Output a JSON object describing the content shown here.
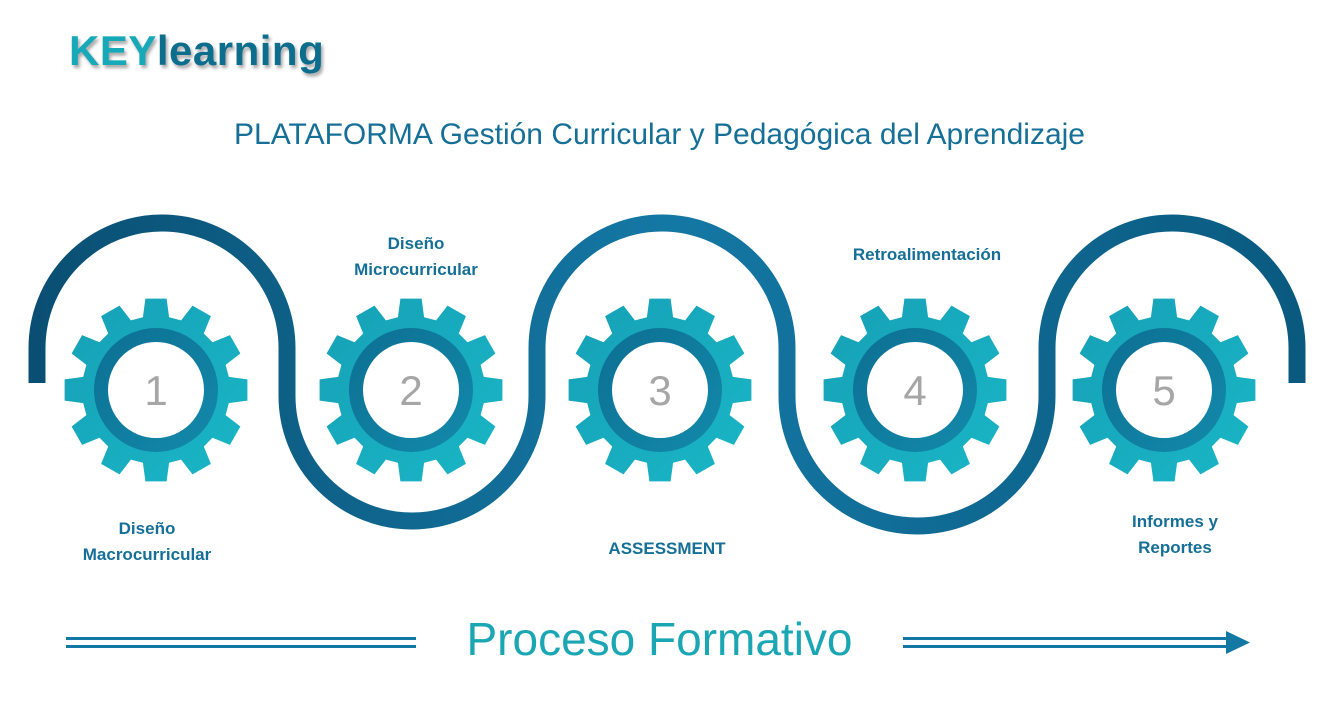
{
  "brand": {
    "part1": "KEY",
    "part2": "learning"
  },
  "subtitle": "PLATAFORMA Gestión Curricular y Pedagógica del Aprendizaje",
  "steps": [
    {
      "number": "1",
      "label_line1": "Diseño",
      "label_line2": "Macrocurricular"
    },
    {
      "number": "2",
      "label_line1": "Diseño",
      "label_line2": "Microcurricular"
    },
    {
      "number": "3",
      "label_line1": "ASSESSMENT",
      "label_line2": ""
    },
    {
      "number": "4",
      "label_line1": "Retroalimentación",
      "label_line2": ""
    },
    {
      "number": "5",
      "label_line1": "Informes y",
      "label_line2": "Reportes"
    }
  ],
  "footer": {
    "title": "Proceso Formativo"
  },
  "colors": {
    "accent": "#17a9b8",
    "dark": "#0c5f83",
    "text": "#156f96",
    "number": "#a6a6a6"
  }
}
